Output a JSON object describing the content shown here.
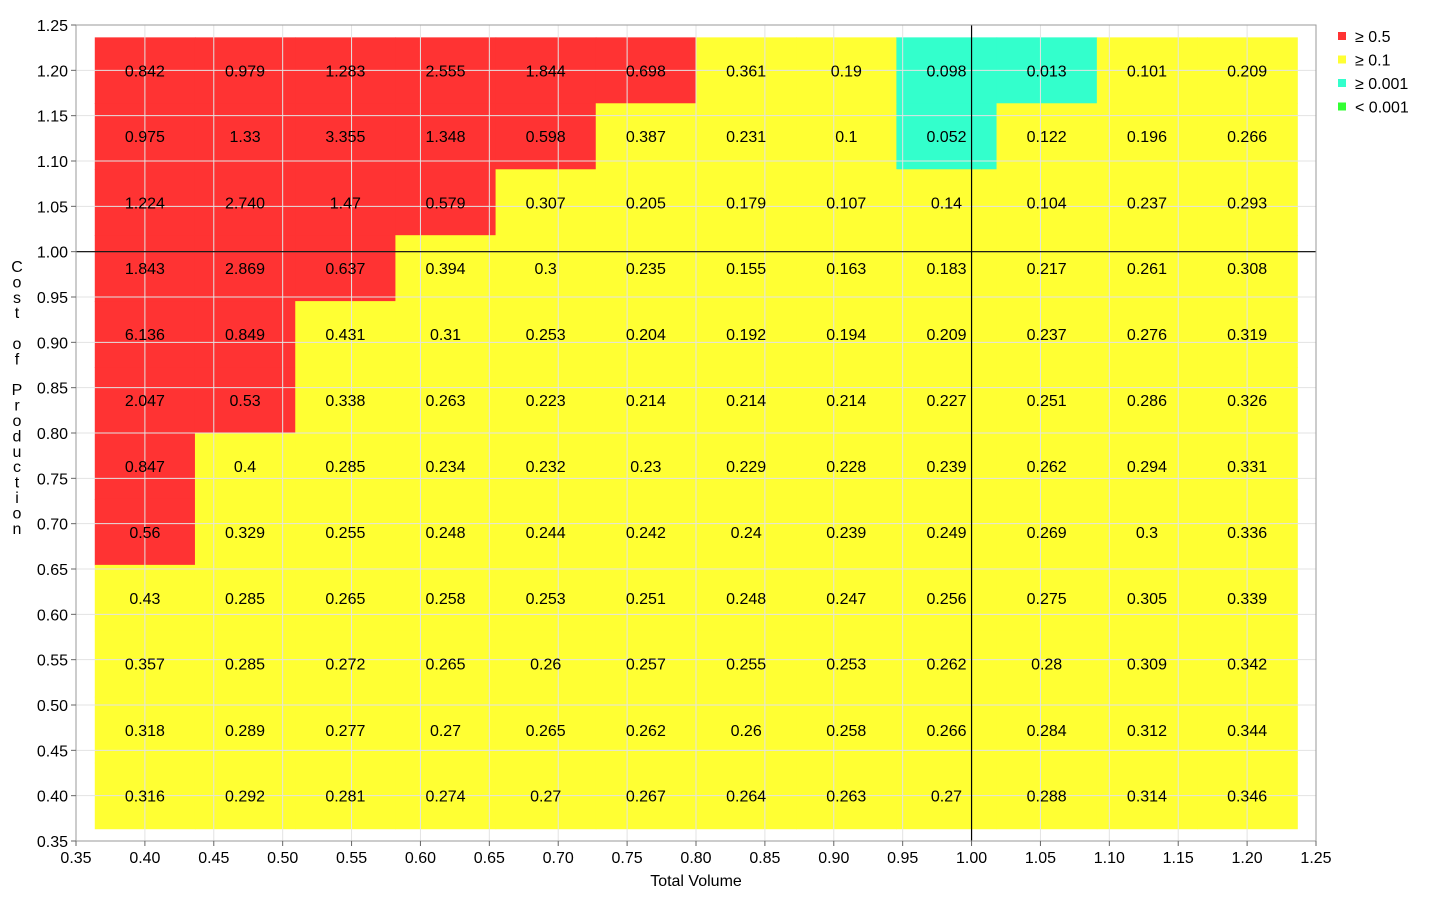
{
  "chart_data": {
    "type": "heatmap",
    "xlabel": "Total Volume",
    "ylabel": "Cost of Production",
    "xlim": [
      0.35,
      1.25
    ],
    "ylim": [
      0.35,
      1.25
    ],
    "x_ticks": [
      "0.35",
      "0.40",
      "0.45",
      "0.50",
      "0.55",
      "0.60",
      "0.65",
      "0.70",
      "0.75",
      "0.80",
      "0.85",
      "0.90",
      "0.95",
      "1.00",
      "1.05",
      "1.10",
      "1.15",
      "1.20",
      "1.25"
    ],
    "y_ticks": [
      "0.35",
      "0.40",
      "0.45",
      "0.50",
      "0.55",
      "0.60",
      "0.65",
      "0.70",
      "0.75",
      "0.80",
      "0.85",
      "0.90",
      "0.95",
      "1.00",
      "1.05",
      "1.10",
      "1.15",
      "1.20",
      "1.25"
    ],
    "x_centers": [
      0.4,
      0.4727,
      0.5455,
      0.6182,
      0.6909,
      0.7636,
      0.8364,
      0.9091,
      0.9818,
      1.0545,
      1.1273,
      1.2
    ],
    "y_centers": [
      1.2,
      1.1273,
      1.0545,
      0.9818,
      0.9091,
      0.8364,
      0.7636,
      0.6909,
      0.6182,
      0.5455,
      0.4727,
      0.4
    ],
    "reference_lines": {
      "x": 1.0,
      "y": 1.0
    },
    "grid": true,
    "legend": {
      "position": "top-right",
      "entries": [
        {
          "label": "≥  0.5",
          "color": "#ff3333"
        },
        {
          "label": "≥  0.1",
          "color": "#ffff33"
        },
        {
          "label": "≥ 0.001",
          "color": "#33ffcc"
        },
        {
          "label": "< 0.001",
          "color": "#33ff33"
        }
      ]
    },
    "colors": {
      "red": "#ff3333",
      "yellow": "#ffff33",
      "cyan": "#33ffcc",
      "green": "#33ff33"
    },
    "rows": [
      {
        "labels": [
          "0.842",
          "0.979",
          "1.283",
          "2.555",
          "1.844",
          "0.698",
          "0.361",
          "0.19",
          "0.098",
          "0.013",
          "0.101",
          "0.209"
        ],
        "colors": [
          "red",
          "red",
          "red",
          "red",
          "red",
          "red",
          "yellow",
          "yellow",
          "cyan",
          "cyan",
          "yellow",
          "yellow"
        ]
      },
      {
        "labels": [
          "0.975",
          "1.33",
          "3.355",
          "1.348",
          "0.598",
          "0.387",
          "0.231",
          "0.1",
          "0.052",
          "0.122",
          "0.196",
          "0.266"
        ],
        "colors": [
          "red",
          "red",
          "red",
          "red",
          "red",
          "yellow",
          "yellow",
          "yellow",
          "cyan",
          "yellow",
          "yellow",
          "yellow"
        ]
      },
      {
        "labels": [
          "1.224",
          "2.740",
          "1.47",
          "0.579",
          "0.307",
          "0.205",
          "0.179",
          "0.107",
          "0.14",
          "0.104",
          "0.237",
          "0.293"
        ],
        "colors": [
          "red",
          "red",
          "red",
          "red",
          "yellow",
          "yellow",
          "yellow",
          "yellow",
          "yellow",
          "yellow",
          "yellow",
          "yellow"
        ]
      },
      {
        "labels": [
          "1.843",
          "2.869",
          "0.637",
          "0.394",
          "0.3",
          "0.235",
          "0.155",
          "0.163",
          "0.183",
          "0.217",
          "0.261",
          "0.308"
        ],
        "colors": [
          "red",
          "red",
          "red",
          "yellow",
          "yellow",
          "yellow",
          "yellow",
          "yellow",
          "yellow",
          "yellow",
          "yellow",
          "yellow"
        ]
      },
      {
        "labels": [
          "6.136",
          "0.849",
          "0.431",
          "0.31",
          "0.253",
          "0.204",
          "0.192",
          "0.194",
          "0.209",
          "0.237",
          "0.276",
          "0.319"
        ],
        "colors": [
          "red",
          "red",
          "yellow",
          "yellow",
          "yellow",
          "yellow",
          "yellow",
          "yellow",
          "yellow",
          "yellow",
          "yellow",
          "yellow"
        ]
      },
      {
        "labels": [
          "2.047",
          "0.53",
          "0.338",
          "0.263",
          "0.223",
          "0.214",
          "0.214",
          "0.214",
          "0.227",
          "0.251",
          "0.286",
          "0.326"
        ],
        "colors": [
          "red",
          "red",
          "yellow",
          "yellow",
          "yellow",
          "yellow",
          "yellow",
          "yellow",
          "yellow",
          "yellow",
          "yellow",
          "yellow"
        ]
      },
      {
        "labels": [
          "0.847",
          "0.4",
          "0.285",
          "0.234",
          "0.232",
          "0.23",
          "0.229",
          "0.228",
          "0.239",
          "0.262",
          "0.294",
          "0.331"
        ],
        "colors": [
          "red",
          "yellow",
          "yellow",
          "yellow",
          "yellow",
          "yellow",
          "yellow",
          "yellow",
          "yellow",
          "yellow",
          "yellow",
          "yellow"
        ]
      },
      {
        "labels": [
          "0.56",
          "0.329",
          "0.255",
          "0.248",
          "0.244",
          "0.242",
          "0.24",
          "0.239",
          "0.249",
          "0.269",
          "0.3",
          "0.336"
        ],
        "colors": [
          "red",
          "yellow",
          "yellow",
          "yellow",
          "yellow",
          "yellow",
          "yellow",
          "yellow",
          "yellow",
          "yellow",
          "yellow",
          "yellow"
        ]
      },
      {
        "labels": [
          "0.43",
          "0.285",
          "0.265",
          "0.258",
          "0.253",
          "0.251",
          "0.248",
          "0.247",
          "0.256",
          "0.275",
          "0.305",
          "0.339"
        ],
        "colors": [
          "yellow",
          "yellow",
          "yellow",
          "yellow",
          "yellow",
          "yellow",
          "yellow",
          "yellow",
          "yellow",
          "yellow",
          "yellow",
          "yellow"
        ]
      },
      {
        "labels": [
          "0.357",
          "0.285",
          "0.272",
          "0.265",
          "0.26",
          "0.257",
          "0.255",
          "0.253",
          "0.262",
          "0.28",
          "0.309",
          "0.342"
        ],
        "colors": [
          "yellow",
          "yellow",
          "yellow",
          "yellow",
          "yellow",
          "yellow",
          "yellow",
          "yellow",
          "yellow",
          "yellow",
          "yellow",
          "yellow"
        ]
      },
      {
        "labels": [
          "0.318",
          "0.289",
          "0.277",
          "0.27",
          "0.265",
          "0.262",
          "0.26",
          "0.258",
          "0.266",
          "0.284",
          "0.312",
          "0.344"
        ],
        "colors": [
          "yellow",
          "yellow",
          "yellow",
          "yellow",
          "yellow",
          "yellow",
          "yellow",
          "yellow",
          "yellow",
          "yellow",
          "yellow",
          "yellow"
        ]
      },
      {
        "labels": [
          "0.316",
          "0.292",
          "0.281",
          "0.274",
          "0.27",
          "0.267",
          "0.264",
          "0.263",
          "0.27",
          "0.288",
          "0.314",
          "0.346"
        ],
        "colors": [
          "yellow",
          "yellow",
          "yellow",
          "yellow",
          "yellow",
          "yellow",
          "yellow",
          "yellow",
          "yellow",
          "yellow",
          "yellow",
          "yellow"
        ]
      }
    ]
  }
}
